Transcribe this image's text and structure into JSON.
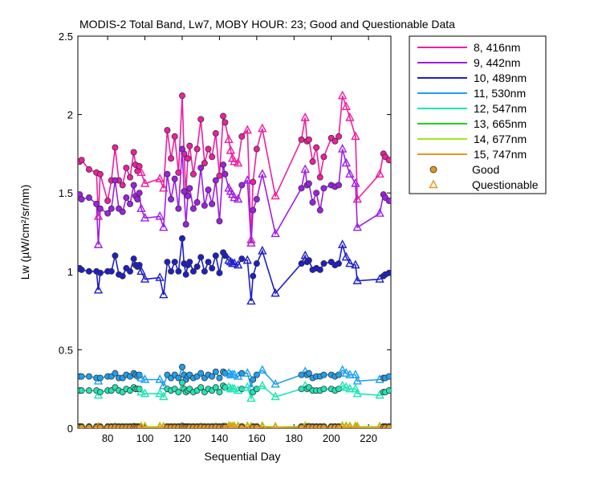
{
  "chart_data": {
    "type": "line",
    "title": "MODIS-2 Total Band,  Lw7, MOBY HOUR: 23;  Good and Questionable Data",
    "xlabel": "Sequential Day",
    "ylabel": "Lw (µW/cm²/sr/nm)",
    "xlim": [
      64,
      232
    ],
    "ylim": [
      0,
      2.5
    ],
    "xticks": [
      80,
      100,
      120,
      140,
      160,
      180,
      200,
      220
    ],
    "yticks": [
      0,
      0.5,
      1,
      1.5,
      2,
      2.5
    ],
    "ytick_labels": [
      "0",
      "0.5",
      "1",
      "1.5",
      "2",
      "2.5"
    ],
    "grid": false,
    "legend_position": "outside-top-right",
    "legend_markers": [
      {
        "label": "Good",
        "marker": "circle",
        "color": "#E6961E"
      },
      {
        "label": "Questionable",
        "marker": "triangle",
        "color": "#E6961E"
      }
    ],
    "days": [
      65,
      66,
      70,
      74,
      75,
      76,
      80,
      82,
      84,
      86,
      88,
      90,
      92,
      94,
      95,
      96,
      97,
      98,
      100,
      108,
      110,
      112,
      114,
      116,
      118,
      120,
      121,
      122,
      123,
      124,
      126,
      128,
      130,
      132,
      134,
      136,
      138,
      140,
      142,
      143,
      145,
      146,
      147,
      148,
      150,
      152,
      155,
      157,
      158,
      160,
      163,
      170,
      184,
      186,
      187,
      188,
      190,
      192,
      194,
      196,
      200,
      202,
      204,
      206,
      208,
      210,
      213,
      214,
      226,
      228,
      229,
      231
    ],
    "quality": [
      "G",
      "G",
      "G",
      "G",
      "Q",
      "G",
      "G",
      "G",
      "G",
      "G",
      "G",
      "G",
      "G",
      "G",
      "G",
      "G",
      "G",
      "Q",
      "Q",
      "Q",
      "Q",
      "G",
      "G",
      "G",
      "G",
      "G",
      "G",
      "G",
      "G",
      "G",
      "G",
      "G",
      "G",
      "G",
      "G",
      "G",
      "G",
      "G",
      "G",
      "G",
      "Q",
      "Q",
      "Q",
      "Q",
      "Q",
      "G",
      "Q",
      "Q",
      "G",
      "G",
      "Q",
      "Q",
      "G",
      "Q",
      "G",
      "G",
      "G",
      "G",
      "G",
      "G",
      "G",
      "G",
      "G",
      "Q",
      "Q",
      "Q",
      "Q",
      "Q",
      "Q",
      "G",
      "G",
      "G"
    ],
    "series": [
      {
        "name": "8, 416nm",
        "color": "#F01EA0",
        "values": [
          1.7,
          1.71,
          1.65,
          1.63,
          1.35,
          1.62,
          1.45,
          1.58,
          1.79,
          1.58,
          1.55,
          1.66,
          1.6,
          1.76,
          1.68,
          1.64,
          1.67,
          1.63,
          1.56,
          1.59,
          1.53,
          1.9,
          1.72,
          1.86,
          1.63,
          2.12,
          1.75,
          1.5,
          1.72,
          1.8,
          1.62,
          1.78,
          1.97,
          1.69,
          1.78,
          1.73,
          1.88,
          1.61,
          1.99,
          1.95,
          1.84,
          1.77,
          1.72,
          1.7,
          1.69,
          1.86,
          1.9,
          1.2,
          1.57,
          1.78,
          1.91,
          1.48,
          1.84,
          1.98,
          1.83,
          1.84,
          1.7,
          1.79,
          1.6,
          1.73,
          1.85,
          1.83,
          1.86,
          2.12,
          2.05,
          1.98,
          1.86,
          1.46,
          1.62,
          1.75,
          1.73,
          1.71
        ]
      },
      {
        "name": "9, 442nm",
        "color": "#A01EE6",
        "values": [
          1.49,
          1.46,
          1.47,
          1.43,
          1.17,
          1.4,
          1.37,
          1.4,
          1.58,
          1.4,
          1.38,
          1.47,
          1.43,
          1.55,
          1.48,
          1.46,
          1.5,
          1.4,
          1.34,
          1.35,
          1.28,
          1.62,
          1.46,
          1.59,
          1.4,
          1.78,
          1.51,
          1.3,
          1.48,
          1.53,
          1.4,
          1.44,
          1.66,
          1.42,
          1.52,
          1.43,
          1.58,
          1.32,
          1.68,
          1.62,
          1.53,
          1.51,
          1.49,
          1.47,
          1.46,
          1.55,
          1.58,
          1.18,
          1.39,
          1.46,
          1.62,
          1.24,
          1.53,
          1.65,
          1.55,
          1.56,
          1.44,
          1.5,
          1.39,
          1.53,
          1.55,
          1.54,
          1.55,
          1.78,
          1.69,
          1.62,
          1.56,
          1.28,
          1.37,
          1.49,
          1.47,
          1.45
        ]
      },
      {
        "name": "10, 489nm",
        "color": "#1E1EC8",
        "values": [
          1.02,
          1.01,
          1.0,
          1.0,
          0.88,
          0.99,
          1.0,
          1.0,
          1.1,
          0.98,
          0.97,
          1.02,
          1.0,
          1.08,
          1.04,
          1.03,
          1.04,
          1.0,
          0.95,
          0.96,
          0.85,
          1.06,
          1.0,
          1.06,
          1.0,
          1.21,
          1.05,
          0.98,
          1.04,
          1.06,
          1.0,
          1.03,
          1.09,
          1.0,
          1.06,
          1.02,
          1.1,
          0.99,
          1.12,
          1.1,
          1.07,
          1.06,
          1.05,
          1.05,
          1.04,
          1.08,
          1.07,
          0.81,
          0.97,
          1.05,
          1.13,
          0.86,
          1.05,
          1.1,
          1.06,
          1.07,
          1.01,
          1.02,
          1.01,
          1.05,
          1.06,
          1.04,
          1.05,
          1.17,
          1.09,
          1.05,
          1.04,
          0.94,
          0.95,
          0.97,
          0.98,
          0.99
        ]
      },
      {
        "name": "11, 530nm",
        "color": "#1EA0F0",
        "values": [
          0.33,
          0.33,
          0.33,
          0.32,
          0.3,
          0.32,
          0.33,
          0.33,
          0.35,
          0.32,
          0.32,
          0.34,
          0.33,
          0.35,
          0.34,
          0.33,
          0.34,
          0.32,
          0.31,
          0.31,
          0.27,
          0.34,
          0.32,
          0.34,
          0.32,
          0.39,
          0.34,
          0.31,
          0.33,
          0.34,
          0.32,
          0.33,
          0.35,
          0.32,
          0.34,
          0.33,
          0.36,
          0.32,
          0.36,
          0.35,
          0.35,
          0.34,
          0.34,
          0.34,
          0.33,
          0.35,
          0.35,
          0.26,
          0.31,
          0.34,
          0.37,
          0.28,
          0.34,
          0.36,
          0.34,
          0.35,
          0.32,
          0.33,
          0.33,
          0.34,
          0.34,
          0.33,
          0.34,
          0.37,
          0.35,
          0.34,
          0.34,
          0.3,
          0.31,
          0.32,
          0.32,
          0.33
        ]
      },
      {
        "name": "12, 547nm",
        "color": "#1EE6B4",
        "values": [
          0.24,
          0.24,
          0.24,
          0.24,
          0.21,
          0.23,
          0.24,
          0.24,
          0.26,
          0.24,
          0.23,
          0.25,
          0.24,
          0.26,
          0.25,
          0.25,
          0.25,
          0.23,
          0.22,
          0.22,
          0.2,
          0.25,
          0.24,
          0.25,
          0.23,
          0.29,
          0.25,
          0.23,
          0.24,
          0.25,
          0.23,
          0.24,
          0.26,
          0.23,
          0.25,
          0.24,
          0.26,
          0.23,
          0.27,
          0.26,
          0.26,
          0.25,
          0.25,
          0.25,
          0.24,
          0.25,
          0.26,
          0.19,
          0.23,
          0.25,
          0.27,
          0.2,
          0.25,
          0.27,
          0.25,
          0.26,
          0.24,
          0.24,
          0.24,
          0.25,
          0.25,
          0.24,
          0.25,
          0.27,
          0.26,
          0.25,
          0.25,
          0.22,
          0.21,
          0.23,
          0.23,
          0.24
        ]
      },
      {
        "name": "13, 665nm",
        "color": "#1ED21E",
        "values": [
          0.01,
          0.01,
          0.01,
          0.01,
          0.008,
          0.01,
          0.01,
          0.01,
          0.012,
          0.01,
          0.01,
          0.011,
          0.01,
          0.012,
          0.011,
          0.011,
          0.011,
          0.01,
          0.009,
          0.009,
          0.008,
          0.011,
          0.01,
          0.011,
          0.01,
          0.014,
          0.011,
          0.01,
          0.01,
          0.011,
          0.01,
          0.01,
          0.012,
          0.01,
          0.011,
          0.01,
          0.012,
          0.01,
          0.012,
          0.012,
          0.012,
          0.011,
          0.011,
          0.011,
          0.011,
          0.011,
          0.012,
          0.008,
          0.01,
          0.011,
          0.013,
          0.008,
          0.011,
          0.012,
          0.011,
          0.012,
          0.01,
          0.01,
          0.01,
          0.011,
          0.011,
          0.01,
          0.011,
          0.013,
          0.012,
          0.011,
          0.011,
          0.009,
          0.009,
          0.01,
          0.01,
          0.01
        ]
      },
      {
        "name": "14, 677nm",
        "color": "#A0E61E",
        "values": [
          0.01,
          0.01,
          0.01,
          0.01,
          0.008,
          0.01,
          0.01,
          0.01,
          0.012,
          0.01,
          0.01,
          0.011,
          0.01,
          0.012,
          0.011,
          0.011,
          0.011,
          0.01,
          0.009,
          0.009,
          0.008,
          0.011,
          0.01,
          0.011,
          0.01,
          0.014,
          0.011,
          0.01,
          0.01,
          0.011,
          0.01,
          0.01,
          0.012,
          0.01,
          0.011,
          0.01,
          0.012,
          0.01,
          0.012,
          0.012,
          0.012,
          0.011,
          0.011,
          0.011,
          0.011,
          0.011,
          0.012,
          0.008,
          0.01,
          0.011,
          0.013,
          0.008,
          0.011,
          0.012,
          0.011,
          0.012,
          0.01,
          0.01,
          0.01,
          0.011,
          0.011,
          0.01,
          0.011,
          0.013,
          0.012,
          0.011,
          0.011,
          0.009,
          0.009,
          0.01,
          0.01,
          0.01
        ]
      },
      {
        "name": "15, 747nm",
        "color": "#E6961E",
        "values": [
          0.005,
          0.005,
          0.005,
          0.005,
          0.004,
          0.005,
          0.005,
          0.005,
          0.006,
          0.005,
          0.005,
          0.005,
          0.005,
          0.006,
          0.005,
          0.005,
          0.005,
          0.005,
          0.004,
          0.004,
          0.004,
          0.005,
          0.005,
          0.005,
          0.005,
          0.007,
          0.005,
          0.005,
          0.005,
          0.005,
          0.005,
          0.005,
          0.006,
          0.005,
          0.005,
          0.005,
          0.006,
          0.005,
          0.006,
          0.006,
          0.006,
          0.005,
          0.005,
          0.005,
          0.005,
          0.005,
          0.006,
          0.004,
          0.005,
          0.005,
          0.006,
          0.004,
          0.005,
          0.006,
          0.005,
          0.006,
          0.005,
          0.005,
          0.005,
          0.005,
          0.005,
          0.005,
          0.005,
          0.006,
          0.006,
          0.005,
          0.005,
          0.004,
          0.004,
          0.005,
          0.005,
          0.005
        ]
      }
    ]
  }
}
